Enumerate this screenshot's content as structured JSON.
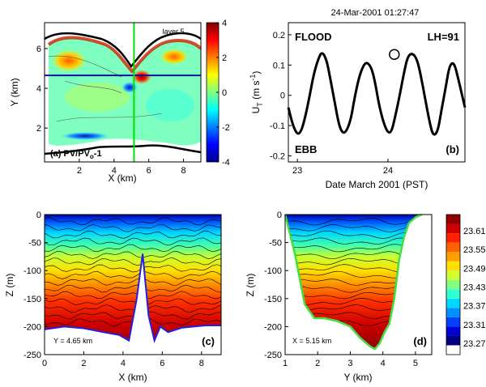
{
  "chart_data": [
    {
      "panel": "(a)",
      "type": "heatmap",
      "title_label": "(a) PV/PV",
      "title_sub": "o",
      "title_suffix": "-1",
      "layer_label": "layer 5",
      "xlabel": "X (km)",
      "ylabel": "Y (km)",
      "xlim": [
        0,
        9
      ],
      "ylim": [
        0.3,
        7.3
      ],
      "xticks": [
        "2",
        "4",
        "6",
        "8"
      ],
      "yticks": [
        "2",
        "4",
        "6"
      ],
      "section_x_km": 5.15,
      "section_y_km": 4.65,
      "colorbar": {
        "min": -4,
        "max": 4,
        "ticks": [
          "4",
          "2",
          "0",
          "-2",
          "-4"
        ]
      }
    },
    {
      "panel": "(b)",
      "type": "line",
      "title": "24-Mar-2001 01:27:47",
      "xlabel": "Date March 2001 (PST)",
      "ylabel_main": "U",
      "ylabel_sub": "T",
      "ylabel_units": " (m s",
      "ylabel_sup": "-1",
      "ylabel_close": ")",
      "flood_label": "FLOOD",
      "ebb_label": "EBB",
      "lh_label": "LH=91",
      "xlim": [
        22.9,
        24.85
      ],
      "ylim": [
        -0.22,
        0.24
      ],
      "xticks": [
        "23",
        "24"
      ],
      "yticks": [
        "0.2",
        "0.1",
        "0",
        "-0.1",
        "-0.2"
      ],
      "series": [
        {
          "x": [
            22.9,
            22.95,
            23.0,
            23.04,
            23.08,
            23.13,
            23.18,
            23.23,
            23.27,
            23.32,
            23.36,
            23.41,
            23.46,
            23.5,
            23.54,
            23.59,
            23.63,
            23.68,
            23.73,
            23.77,
            23.82,
            23.86,
            23.9,
            23.95,
            24.0,
            24.04,
            24.08,
            24.13,
            24.18,
            24.22,
            24.27,
            24.32,
            24.36,
            24.41,
            24.46,
            24.5,
            24.55,
            24.59,
            24.64,
            24.68,
            24.73,
            24.78,
            24.85
          ],
          "y": [
            -0.04,
            -0.1,
            -0.13,
            -0.12,
            -0.08,
            -0.01,
            0.07,
            0.12,
            0.145,
            0.12,
            0.06,
            -0.02,
            -0.1,
            -0.125,
            -0.12,
            -0.08,
            -0.01,
            0.06,
            0.1,
            0.11,
            0.09,
            0.04,
            -0.03,
            -0.09,
            -0.125,
            -0.12,
            -0.07,
            0.0,
            0.08,
            0.13,
            0.14,
            0.12,
            0.07,
            -0.01,
            -0.09,
            -0.135,
            -0.12,
            -0.05,
            0.03,
            0.1,
            0.11,
            0.05,
            -0.04
          ]
        }
      ],
      "marker": {
        "x": 24.07,
        "y": 0.135
      }
    },
    {
      "panel": "(c)",
      "type": "heatmap",
      "xlabel": "X (km)",
      "ylabel": "Z (m)",
      "xlim": [
        0,
        9
      ],
      "ylim": [
        -250,
        0
      ],
      "xticks": [
        "0",
        "2",
        "4",
        "6",
        "8"
      ],
      "yticks": [
        "0",
        "-50",
        "-100",
        "-150",
        "-200",
        "-250"
      ],
      "annotation": "Y = 4.65 km",
      "bottom": {
        "x": [
          0,
          1,
          2,
          3,
          3.8,
          4.3,
          4.7,
          5.0,
          5.3,
          5.6,
          5.9,
          6.3,
          7,
          7.6,
          8.2,
          9
        ],
        "z": [
          -205,
          -200,
          -203,
          -210,
          -215,
          -225,
          -150,
          -70,
          -180,
          -225,
          -200,
          -210,
          -202,
          -200,
          -198,
          -198
        ]
      }
    },
    {
      "panel": "(d)",
      "type": "heatmap",
      "xlabel": "Y (km)",
      "ylabel": "Z (m)",
      "xlim": [
        1,
        5.5
      ],
      "ylim": [
        -250,
        0
      ],
      "xticks": [
        "1",
        "2",
        "3",
        "4",
        "5"
      ],
      "yticks": [
        "0",
        "-50",
        "-100",
        "-150",
        "-200",
        "-250"
      ],
      "annotation": "X = 5.15 km",
      "bottom": {
        "x": [
          1.0,
          1.3,
          1.6,
          1.9,
          2.2,
          2.6,
          3.0,
          3.3,
          3.6,
          3.75,
          3.9,
          4.05,
          4.2,
          4.35,
          4.5,
          4.65,
          4.8,
          5.0,
          5.2
        ],
        "z": [
          0,
          -70,
          -160,
          -185,
          -185,
          -190,
          -200,
          -220,
          -235,
          -240,
          -230,
          -210,
          -195,
          -150,
          -80,
          -40,
          -15,
          -5,
          0
        ]
      },
      "colorbar": {
        "ticks": [
          "23.61",
          "23.55",
          "23.49",
          "23.43",
          "23.37",
          "23.31",
          "23.27"
        ]
      }
    }
  ]
}
